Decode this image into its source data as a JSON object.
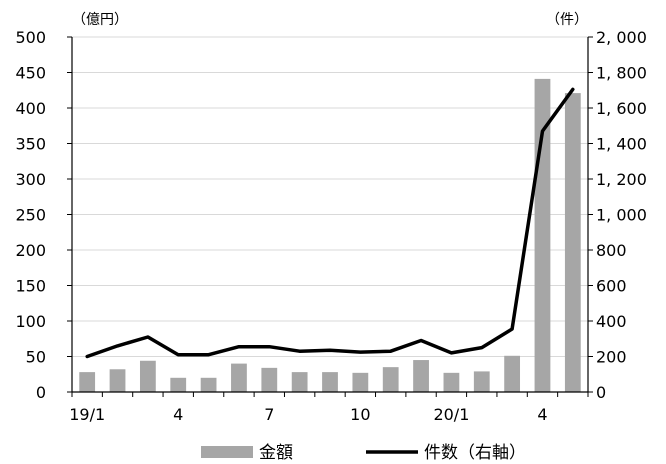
{
  "chart_data": {
    "type": "bar+line",
    "y_left_unit": "（億円）",
    "y_right_unit": "（件）",
    "x_tick_labels": [
      {
        "index": 0,
        "label": "19/1"
      },
      {
        "index": 3,
        "label": "4"
      },
      {
        "index": 6,
        "label": "7"
      },
      {
        "index": 9,
        "label": "10"
      },
      {
        "index": 12,
        "label": "20/1"
      },
      {
        "index": 15,
        "label": "4"
      }
    ],
    "periods": [
      "2019-01",
      "2019-02",
      "2019-03",
      "2019-04",
      "2019-05",
      "2019-06",
      "2019-07",
      "2019-08",
      "2019-09",
      "2019-10",
      "2019-11",
      "2019-12",
      "2020-01",
      "2020-02",
      "2020-03",
      "2020-04",
      "2020-05"
    ],
    "y_left": {
      "min": 0,
      "max": 500,
      "ticks": [
        "0",
        "50",
        "100",
        "150",
        "200",
        "250",
        "300",
        "350",
        "400",
        "450",
        "500"
      ]
    },
    "y_right": {
      "min": 0,
      "max": 2000,
      "ticks": [
        "0",
        "200",
        "400",
        "600",
        "800",
        "1, 000",
        "1, 200",
        "1, 400",
        "1, 600",
        "1, 800",
        "2, 000"
      ]
    },
    "series": [
      {
        "name": "金額",
        "type": "bar",
        "axis": "left",
        "color": "#a6a6a6",
        "values": [
          28,
          32,
          44,
          20,
          20,
          40,
          34,
          28,
          28,
          27,
          35,
          45,
          27,
          29,
          51,
          441,
          421
        ]
      },
      {
        "name": "件数（右軸）",
        "type": "line",
        "axis": "right",
        "color": "#000000",
        "values": [
          200,
          260,
          310,
          210,
          210,
          255,
          255,
          230,
          235,
          225,
          230,
          290,
          220,
          250,
          355,
          1470,
          1705
        ]
      }
    ],
    "legend": {
      "position": "bottom"
    },
    "grid": {
      "horizontal": true,
      "vertical": false
    }
  }
}
